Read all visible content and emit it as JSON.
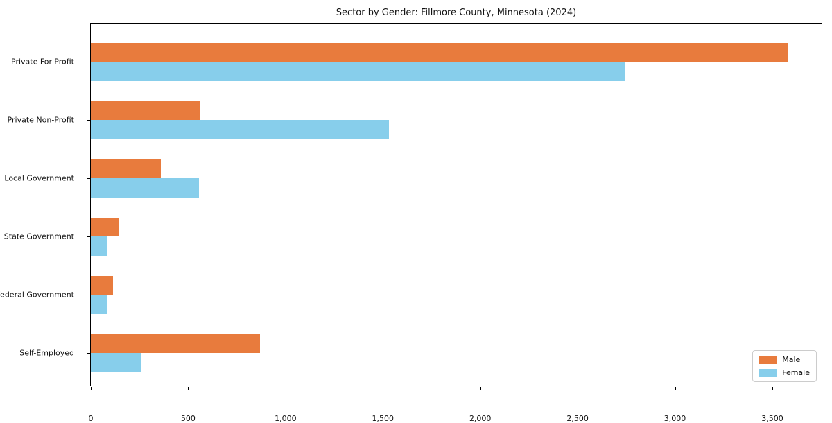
{
  "title": "Sector by Gender: Fillmore County, Minnesota (2024)",
  "chart_data": {
    "type": "bar",
    "orientation": "horizontal",
    "title": "Sector by Gender: Fillmore County, Minnesota (2024)",
    "categories": [
      "Private For-Profit",
      "Private Non-Profit",
      "Local Government",
      "State Government",
      "Federal Government",
      "Self-Employed"
    ],
    "series": [
      {
        "name": "Male",
        "color": "#e87b3d",
        "values": [
          3580,
          560,
          360,
          145,
          115,
          870
        ]
      },
      {
        "name": "Female",
        "color": "#87ceeb",
        "values": [
          2740,
          1530,
          555,
          85,
          85,
          260
        ]
      }
    ],
    "xlabel": "",
    "ylabel": "",
    "xlim": [
      0,
      3760
    ],
    "x_ticks": [
      {
        "value": 0,
        "label": "0"
      },
      {
        "value": 500,
        "label": "500"
      },
      {
        "value": 1000,
        "label": "1,000"
      },
      {
        "value": 1500,
        "label": "1,500"
      },
      {
        "value": 2000,
        "label": "2,000"
      },
      {
        "value": 2500,
        "label": "2,500"
      },
      {
        "value": 3000,
        "label": "3,000"
      },
      {
        "value": 3500,
        "label": "3,500"
      }
    ],
    "grid": false,
    "legend_position": "lower right"
  }
}
